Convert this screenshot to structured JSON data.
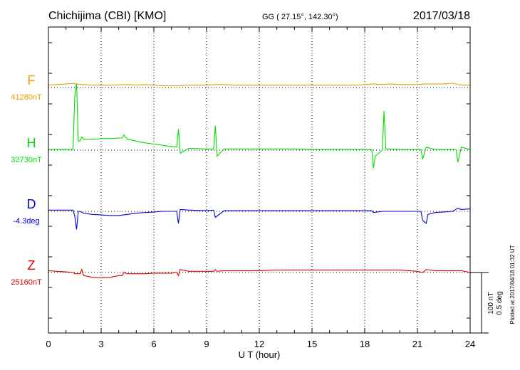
{
  "header": {
    "station": "Chichijima (CBI)  [KMO]",
    "coordinates": "GG ( 27.15°, 142.30°)",
    "date": "2017/03/18"
  },
  "side_note": "Plotted at 2017/04/18 01:32 UT",
  "scale_bar": {
    "label_nt": "100 nT",
    "label_deg": "0.5 deg"
  },
  "chart_data": {
    "type": "line",
    "xlabel": "U T (hour)",
    "xlim": [
      0,
      24
    ],
    "xticks": [
      0,
      3,
      6,
      9,
      12,
      15,
      18,
      21,
      24
    ],
    "x_tick_labels": [
      "0",
      "3",
      "6",
      "9",
      "12",
      "15",
      "18",
      "21",
      "24"
    ],
    "grid": true,
    "grid_style": "dotted vertical at 3-hour ticks, dotted horizontal baseline per component",
    "scale_nt_per_bar": 100,
    "scale_deg_per_bar": 0.5,
    "series": [
      {
        "name": "F",
        "baseline_label": "41280nT",
        "color": "#e6a000",
        "points": [
          [
            0,
            4
          ],
          [
            0.5,
            5
          ],
          [
            1,
            6
          ],
          [
            1.4,
            7
          ],
          [
            1.5,
            6
          ],
          [
            2,
            5
          ],
          [
            2.5,
            4
          ],
          [
            3,
            4
          ],
          [
            3.5,
            4
          ],
          [
            4,
            4.5
          ],
          [
            4.5,
            5
          ],
          [
            5,
            4
          ],
          [
            5.5,
            5
          ],
          [
            6,
            4
          ],
          [
            6.5,
            3
          ],
          [
            7,
            3
          ],
          [
            7.5,
            3
          ],
          [
            8,
            4
          ],
          [
            8.5,
            4
          ],
          [
            9,
            4
          ],
          [
            9.5,
            5
          ],
          [
            10,
            5
          ],
          [
            10.5,
            4
          ],
          [
            11,
            4
          ],
          [
            11.5,
            4
          ],
          [
            12,
            4
          ],
          [
            12.5,
            4
          ],
          [
            13,
            4
          ],
          [
            13.5,
            4
          ],
          [
            14,
            4
          ],
          [
            14.5,
            4
          ],
          [
            15,
            4
          ],
          [
            15.5,
            4
          ],
          [
            16,
            4
          ],
          [
            16.5,
            4
          ],
          [
            17,
            4
          ],
          [
            17.5,
            4
          ],
          [
            18,
            5
          ],
          [
            18.5,
            6
          ],
          [
            19,
            5
          ],
          [
            19.5,
            6
          ],
          [
            20,
            5
          ],
          [
            20.5,
            5
          ],
          [
            21,
            5
          ],
          [
            21.5,
            6
          ],
          [
            22,
            6
          ],
          [
            22.5,
            6
          ],
          [
            23,
            7
          ],
          [
            23.5,
            4
          ],
          [
            24,
            4
          ]
        ]
      },
      {
        "name": "H",
        "baseline_label": "32730nT",
        "color": "#00dd00",
        "points": [
          [
            0,
            1
          ],
          [
            0.5,
            1
          ],
          [
            1,
            1
          ],
          [
            1.4,
            1
          ],
          [
            1.5,
            90
          ],
          [
            1.6,
            110
          ],
          [
            1.7,
            15
          ],
          [
            1.8,
            15
          ],
          [
            1.9,
            22
          ],
          [
            2,
            18
          ],
          [
            2.5,
            18
          ],
          [
            3,
            19
          ],
          [
            3.5,
            19
          ],
          [
            4,
            20
          ],
          [
            4.2,
            20
          ],
          [
            4.3,
            25
          ],
          [
            4.5,
            18
          ],
          [
            5,
            15
          ],
          [
            5.5,
            12
          ],
          [
            6,
            10
          ],
          [
            6.5,
            8
          ],
          [
            7,
            6
          ],
          [
            7.3,
            5
          ],
          [
            7.4,
            35
          ],
          [
            7.5,
            -5
          ],
          [
            8,
            3
          ],
          [
            9,
            2
          ],
          [
            9.4,
            2
          ],
          [
            9.5,
            40
          ],
          [
            9.6,
            -10
          ],
          [
            10,
            2
          ],
          [
            11,
            2
          ],
          [
            12,
            2
          ],
          [
            13,
            2
          ],
          [
            14,
            2
          ],
          [
            15,
            1
          ],
          [
            16,
            1
          ],
          [
            17,
            1
          ],
          [
            18,
            1
          ],
          [
            18.4,
            1
          ],
          [
            18.5,
            -30
          ],
          [
            18.6,
            -10
          ],
          [
            19,
            0
          ],
          [
            19.1,
            65
          ],
          [
            19.2,
            2
          ],
          [
            20,
            1
          ],
          [
            21,
            1
          ],
          [
            21.2,
            1
          ],
          [
            21.3,
            -15
          ],
          [
            21.5,
            5
          ],
          [
            22,
            1
          ],
          [
            23,
            1
          ],
          [
            23.2,
            1
          ],
          [
            23.3,
            -20
          ],
          [
            23.5,
            5
          ],
          [
            24,
            1
          ]
        ]
      },
      {
        "name": "D",
        "baseline_label": "-4.3deg",
        "color": "#0000dd",
        "points": [
          [
            0,
            2
          ],
          [
            0.5,
            2
          ],
          [
            1,
            2
          ],
          [
            1.4,
            2
          ],
          [
            1.5,
            -8
          ],
          [
            1.6,
            -30
          ],
          [
            1.7,
            0
          ],
          [
            1.8,
            0
          ],
          [
            2,
            -3
          ],
          [
            2.5,
            -5
          ],
          [
            3,
            -6
          ],
          [
            3.5,
            -7
          ],
          [
            4,
            -7
          ],
          [
            4.5,
            -5
          ],
          [
            5,
            -3
          ],
          [
            5.5,
            -2
          ],
          [
            6,
            -1
          ],
          [
            6.5,
            0
          ],
          [
            7,
            0
          ],
          [
            7.3,
            0
          ],
          [
            7.4,
            -20
          ],
          [
            7.5,
            3
          ],
          [
            8,
            2
          ],
          [
            9,
            1
          ],
          [
            9.4,
            2
          ],
          [
            9.5,
            -10
          ],
          [
            10,
            1
          ],
          [
            11,
            1
          ],
          [
            12,
            1
          ],
          [
            13,
            1
          ],
          [
            14,
            1
          ],
          [
            15,
            1
          ],
          [
            16,
            1
          ],
          [
            17,
            1
          ],
          [
            18,
            1
          ],
          [
            18.4,
            1
          ],
          [
            18.5,
            -2
          ],
          [
            19,
            0
          ],
          [
            19.5,
            0
          ],
          [
            20,
            0
          ],
          [
            20.5,
            0
          ],
          [
            21,
            0
          ],
          [
            21.2,
            0
          ],
          [
            21.3,
            -15
          ],
          [
            21.5,
            -20
          ],
          [
            21.6,
            -5
          ],
          [
            22,
            -2
          ],
          [
            22.5,
            -1
          ],
          [
            23,
            0
          ],
          [
            23.3,
            5
          ],
          [
            23.5,
            3
          ],
          [
            24,
            4
          ]
        ]
      },
      {
        "name": "Z",
        "baseline_label": "25160nT",
        "color": "#dd0000",
        "points": [
          [
            0,
            3
          ],
          [
            0.5,
            2
          ],
          [
            1,
            1
          ],
          [
            1.4,
            0
          ],
          [
            1.5,
            -2
          ],
          [
            1.8,
            -2
          ],
          [
            1.9,
            5
          ],
          [
            2,
            -5
          ],
          [
            2.5,
            -8
          ],
          [
            3,
            -9
          ],
          [
            3.5,
            -8
          ],
          [
            4,
            -5
          ],
          [
            4.2,
            -5
          ],
          [
            4.3,
            0
          ],
          [
            4.5,
            -2
          ],
          [
            5,
            -2
          ],
          [
            5.5,
            -2
          ],
          [
            6,
            -1
          ],
          [
            6.5,
            -1
          ],
          [
            7,
            -1
          ],
          [
            7.3,
            0
          ],
          [
            7.4,
            -5
          ],
          [
            7.5,
            5
          ],
          [
            8,
            2
          ],
          [
            9,
            2
          ],
          [
            9.4,
            2
          ],
          [
            9.5,
            5
          ],
          [
            9.6,
            2
          ],
          [
            10,
            3
          ],
          [
            11,
            3
          ],
          [
            12,
            3
          ],
          [
            13,
            4
          ],
          [
            14,
            4
          ],
          [
            15,
            4
          ],
          [
            16,
            4
          ],
          [
            17,
            4
          ],
          [
            18,
            4
          ],
          [
            18.5,
            4
          ],
          [
            19,
            4
          ],
          [
            19.2,
            4
          ],
          [
            20,
            4
          ],
          [
            20.5,
            3
          ],
          [
            21,
            2
          ],
          [
            21.3,
            0
          ],
          [
            21.5,
            5
          ],
          [
            22,
            3
          ],
          [
            23,
            3
          ],
          [
            23.5,
            3
          ],
          [
            24,
            0
          ]
        ]
      }
    ]
  }
}
